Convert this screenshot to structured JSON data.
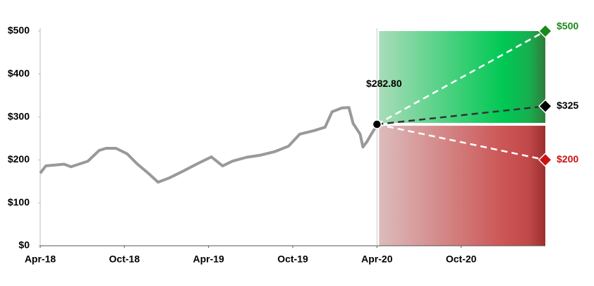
{
  "chart_data": {
    "type": "line",
    "xlim": [
      0,
      36
    ],
    "ylim": [
      0,
      500
    ],
    "xticks": [
      {
        "value": 0,
        "label": "Apr-18"
      },
      {
        "value": 6,
        "label": "Oct-18"
      },
      {
        "value": 12,
        "label": "Apr-19"
      },
      {
        "value": 18,
        "label": "Oct-19"
      },
      {
        "value": 24,
        "label": "Apr-20"
      },
      {
        "value": 30,
        "label": "Oct-20"
      }
    ],
    "yticks": [
      {
        "value": 0,
        "label": "$0"
      },
      {
        "value": 100,
        "label": "$100"
      },
      {
        "value": 200,
        "label": "$200"
      },
      {
        "value": 300,
        "label": "$300"
      },
      {
        "value": 400,
        "label": "$400"
      },
      {
        "value": 500,
        "label": "$500"
      }
    ],
    "history": {
      "color": "#999999",
      "x": [
        0,
        0.4,
        1.7,
        2.2,
        3.4,
        4.2,
        4.7,
        5.4,
        6.2,
        6.9,
        7.7,
        8.4,
        9.2,
        10.2,
        11.2,
        12.2,
        13,
        13.7,
        14.7,
        15.7,
        16.7,
        17.7,
        18.5,
        19.5,
        20.3,
        20.8,
        21.5,
        22,
        22.3,
        22.8,
        23,
        23.3,
        23.6,
        24
      ],
      "values": [
        169,
        186,
        190,
        184,
        197,
        222,
        227,
        227,
        214,
        191,
        169,
        148,
        158,
        174,
        191,
        207,
        186,
        197,
        206,
        211,
        219,
        232,
        260,
        268,
        276,
        312,
        321,
        322,
        285,
        260,
        230,
        243,
        260,
        281
      ]
    },
    "current": {
      "x": 24,
      "value": 282.8,
      "value_label": "$282.80"
    },
    "scenarios": [
      {
        "x": 36,
        "value": 500,
        "value_label": "$500",
        "color": "#1a8a1a",
        "line_color": "#ffffff"
      },
      {
        "x": 36,
        "value": 325,
        "value_label": "$325",
        "color": "#000000",
        "line_color": "#333333"
      },
      {
        "x": 36,
        "value": 200,
        "value_label": "$200",
        "color": "#cc1111",
        "line_color": "#ffffff"
      }
    ]
  }
}
